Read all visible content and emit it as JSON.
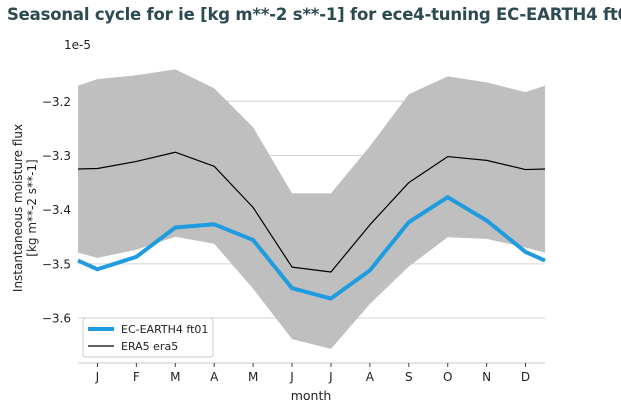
{
  "chart_data": {
    "type": "line",
    "title": "Seasonal cycle for ie [kg m**-2 s**-1] for ece4-tuning EC-EARTH4 ft01",
    "xlabel": "month",
    "ylabel": [
      "Instantaneous moisture flux",
      "[kg m**-2 s**-1]"
    ],
    "y_offset_label": "1e-5",
    "categories": [
      "J",
      "F",
      "M",
      "A",
      "M",
      "J",
      "J",
      "A",
      "S",
      "O",
      "N",
      "D"
    ],
    "xlim": [
      0.5,
      12.5
    ],
    "ylim": [
      -3.683,
      -3.109
    ],
    "yticks": [
      -3.2,
      -3.3,
      -3.4,
      -3.5,
      -3.6
    ],
    "ytick_labels": [
      "−3.2",
      "−3.3",
      "−3.4",
      "−3.5",
      "−3.6"
    ],
    "grid": true,
    "legend_placement": "lower-left",
    "series": [
      {
        "name": "EC-EARTH4 ft01",
        "color": "#1f9be0",
        "values": [
          -3.51,
          -3.487,
          -3.433,
          -3.427,
          -3.456,
          -3.545,
          -3.564,
          -3.512,
          -3.423,
          -3.377,
          -3.42,
          -3.478
        ]
      },
      {
        "name": "ERA5 era5",
        "color": "#000000",
        "values": [
          -3.324,
          -3.311,
          -3.294,
          -3.32,
          -3.396,
          -3.506,
          -3.515,
          -3.428,
          -3.35,
          -3.302,
          -3.309,
          -3.326
        ]
      }
    ],
    "band": {
      "color": "#bfbfbf",
      "upper": [
        -3.159,
        -3.152,
        -3.141,
        -3.176,
        -3.248,
        -3.37,
        -3.37,
        -3.283,
        -3.187,
        -3.154,
        -3.165,
        -3.183
      ],
      "lower": [
        -3.489,
        -3.474,
        -3.45,
        -3.463,
        -3.546,
        -3.639,
        -3.657,
        -3.574,
        -3.505,
        -3.451,
        -3.454,
        -3.47
      ]
    }
  }
}
